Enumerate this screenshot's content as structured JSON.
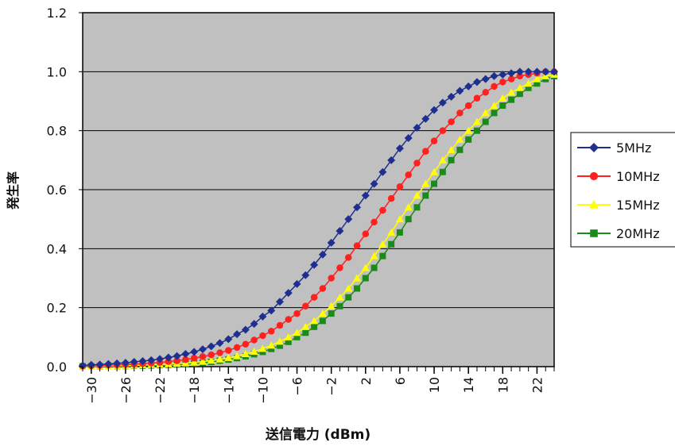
{
  "chart_data": {
    "type": "line",
    "xlabel": "送信電力 (dBm)",
    "ylabel": "発生率",
    "xlim": [
      -31,
      24
    ],
    "ylim": [
      0,
      1.2
    ],
    "x_ticks": [
      -30,
      -26,
      -22,
      -18,
      -14,
      -10,
      -6,
      -2,
      2,
      6,
      10,
      14,
      18,
      22
    ],
    "y_ticks": [
      0.0,
      0.2,
      0.4,
      0.6,
      0.8,
      1.0,
      1.2
    ],
    "y_tick_labels": [
      "0.0",
      "0.2",
      "0.4",
      "0.6",
      "0.8",
      "1.0",
      "1.2"
    ],
    "grid": "horizontal",
    "plot_background": "#c0c0c0",
    "legend_position": "right",
    "x": [
      -31,
      -30,
      -29,
      -28,
      -27,
      -26,
      -25,
      -24,
      -23,
      -22,
      -21,
      -20,
      -19,
      -18,
      -17,
      -16,
      -15,
      -14,
      -13,
      -12,
      -11,
      -10,
      -9,
      -8,
      -7,
      -6,
      -5,
      -4,
      -3,
      -2,
      -1,
      0,
      1,
      2,
      3,
      4,
      5,
      6,
      7,
      8,
      9,
      10,
      11,
      12,
      13,
      14,
      15,
      16,
      17,
      18,
      19,
      20,
      21,
      22,
      23,
      24
    ],
    "series": [
      {
        "name": "5MHz",
        "color": "#1f2f8f",
        "marker": "diamond",
        "values": [
          0.004,
          0.006,
          0.007,
          0.009,
          0.011,
          0.013,
          0.016,
          0.019,
          0.022,
          0.026,
          0.031,
          0.036,
          0.043,
          0.05,
          0.059,
          0.069,
          0.08,
          0.093,
          0.11,
          0.125,
          0.145,
          0.17,
          0.19,
          0.22,
          0.25,
          0.28,
          0.31,
          0.345,
          0.38,
          0.42,
          0.46,
          0.5,
          0.54,
          0.58,
          0.62,
          0.66,
          0.7,
          0.74,
          0.775,
          0.81,
          0.84,
          0.87,
          0.895,
          0.915,
          0.935,
          0.95,
          0.965,
          0.975,
          0.985,
          0.99,
          0.995,
          1.0,
          1.0,
          1.0,
          1.0,
          1.0
        ]
      },
      {
        "name": "10MHz",
        "color": "#ff2020",
        "marker": "circle",
        "values": [
          0.002,
          0.003,
          0.004,
          0.005,
          0.006,
          0.007,
          0.008,
          0.01,
          0.012,
          0.014,
          0.017,
          0.02,
          0.024,
          0.029,
          0.034,
          0.04,
          0.047,
          0.055,
          0.065,
          0.076,
          0.09,
          0.105,
          0.12,
          0.14,
          0.16,
          0.18,
          0.205,
          0.235,
          0.265,
          0.3,
          0.335,
          0.37,
          0.41,
          0.45,
          0.49,
          0.53,
          0.57,
          0.61,
          0.65,
          0.69,
          0.73,
          0.765,
          0.8,
          0.83,
          0.86,
          0.885,
          0.91,
          0.93,
          0.95,
          0.965,
          0.975,
          0.985,
          0.99,
          0.995,
          1.0,
          1.0
        ]
      },
      {
        "name": "15MHz",
        "color": "#ffff00",
        "marker": "triangle",
        "values": [
          0.001,
          0.001,
          0.002,
          0.002,
          0.003,
          0.003,
          0.004,
          0.005,
          0.006,
          0.007,
          0.008,
          0.01,
          0.012,
          0.014,
          0.017,
          0.021,
          0.025,
          0.03,
          0.036,
          0.043,
          0.051,
          0.061,
          0.072,
          0.085,
          0.1,
          0.115,
          0.135,
          0.155,
          0.18,
          0.205,
          0.235,
          0.265,
          0.3,
          0.335,
          0.375,
          0.415,
          0.455,
          0.5,
          0.54,
          0.58,
          0.62,
          0.66,
          0.7,
          0.735,
          0.77,
          0.8,
          0.83,
          0.86,
          0.885,
          0.91,
          0.93,
          0.945,
          0.96,
          0.975,
          0.985,
          0.99
        ]
      },
      {
        "name": "20MHz",
        "color": "#1a8a1a",
        "marker": "square",
        "values": [
          0.001,
          0.001,
          0.001,
          0.002,
          0.002,
          0.002,
          0.003,
          0.003,
          0.004,
          0.005,
          0.006,
          0.007,
          0.009,
          0.011,
          0.013,
          0.016,
          0.02,
          0.024,
          0.029,
          0.035,
          0.042,
          0.05,
          0.06,
          0.071,
          0.084,
          0.1,
          0.115,
          0.135,
          0.155,
          0.18,
          0.205,
          0.235,
          0.265,
          0.3,
          0.335,
          0.375,
          0.415,
          0.455,
          0.5,
          0.54,
          0.58,
          0.62,
          0.66,
          0.7,
          0.735,
          0.77,
          0.8,
          0.83,
          0.86,
          0.885,
          0.905,
          0.925,
          0.945,
          0.96,
          0.975,
          0.985
        ]
      }
    ]
  }
}
